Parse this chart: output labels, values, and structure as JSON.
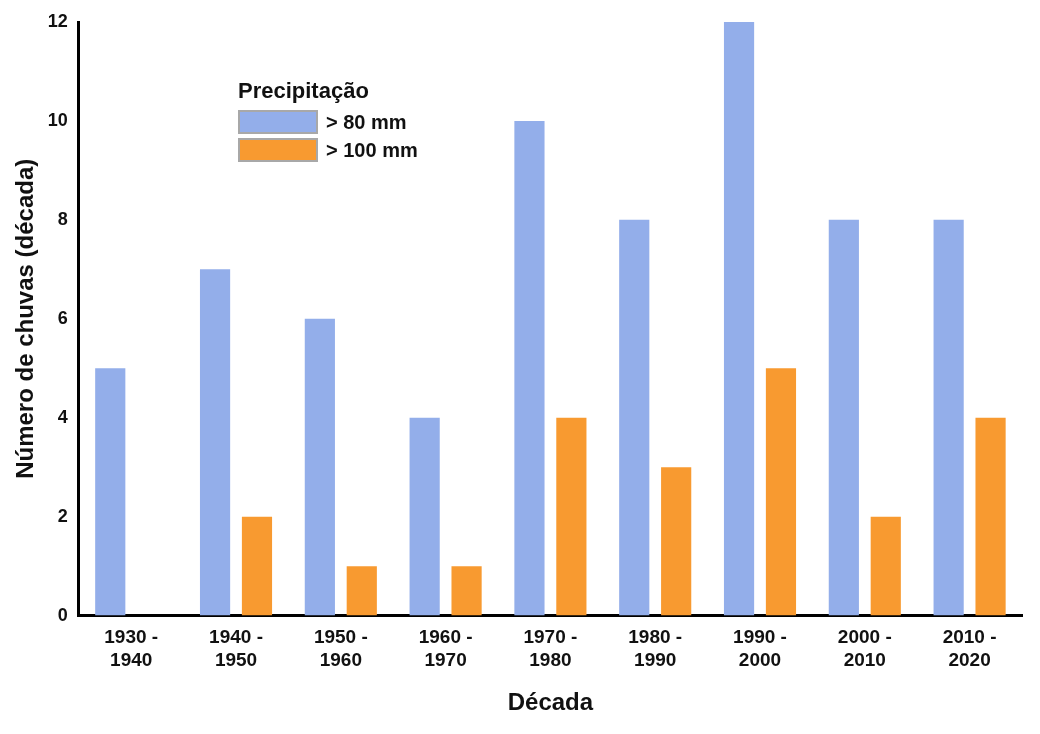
{
  "chart_data": {
    "type": "bar",
    "xlabel": "Década",
    "ylabel": "Número de chuvas (década)",
    "legend_title": "Precipitação",
    "legend": "top left",
    "grid": false,
    "categories": [
      "1930 - 1940",
      "1940 - 1950",
      "1950 - 1960",
      "1960 - 1970",
      "1970 - 1980",
      "1980 - 1990",
      "1990 - 2000",
      "2000 - 2010",
      "2010 - 2020"
    ],
    "ylim": [
      0,
      12
    ],
    "yticks": [
      0,
      2,
      4,
      6,
      8,
      10,
      12
    ],
    "series": [
      {
        "name": "> 80 mm",
        "color": "#93aeea",
        "values": [
          5,
          7,
          6,
          4,
          10,
          8,
          12,
          8,
          8
        ]
      },
      {
        "name": "> 100 mm",
        "color": "#f89a30",
        "values": [
          0,
          2,
          1,
          1,
          4,
          3,
          5,
          2,
          4
        ]
      }
    ]
  }
}
